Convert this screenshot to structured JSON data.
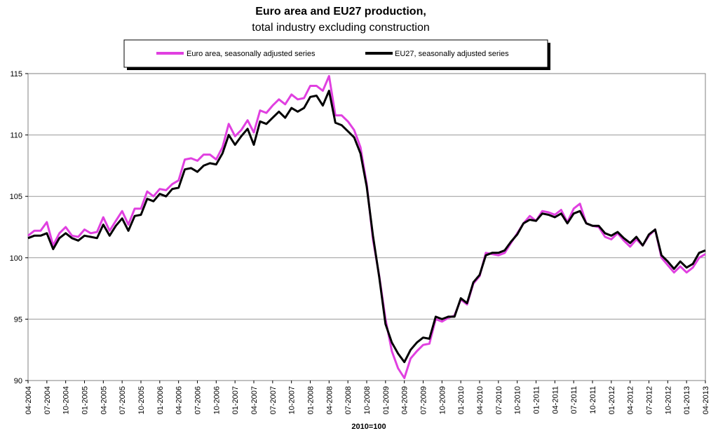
{
  "chart_data": {
    "type": "line",
    "title": "Euro area and EU27 production,",
    "subtitle": "total industry excluding construction",
    "xlabel": "2010=100",
    "ylabel": "",
    "ylim": [
      90,
      115
    ],
    "yticks": [
      90,
      95,
      100,
      105,
      110,
      115
    ],
    "grid": true,
    "legend_position": "top",
    "tick_labels": [
      "04-2004",
      "07-2004",
      "10-2004",
      "01-2005",
      "04-2005",
      "07-2005",
      "10-2005",
      "01-2006",
      "04-2006",
      "07-2006",
      "10-2006",
      "01-2007",
      "04-2007",
      "07-2007",
      "10-2007",
      "01-2008",
      "04-2008",
      "07-2008",
      "10-2008",
      "01-2009",
      "04-2009",
      "07-2009",
      "10-2009",
      "01-2010",
      "04-2010",
      "07-2010",
      "10-2010",
      "01-2011",
      "04-2011",
      "07-2011",
      "10-2011",
      "01-2012",
      "04-2012",
      "07-2012",
      "10-2012",
      "01-2013",
      "04-2013"
    ],
    "x_start": "04-2004",
    "x_end": "04-2013",
    "series": [
      {
        "name": "Euro area, seasonally adjusted series",
        "color": "#e040e0",
        "values": [
          101.8,
          102.2,
          102.2,
          102.9,
          101.0,
          102.0,
          102.5,
          101.8,
          101.7,
          102.3,
          102.0,
          102.1,
          103.3,
          102.2,
          103.0,
          103.8,
          102.7,
          104.0,
          104.0,
          105.4,
          105.0,
          105.6,
          105.5,
          106.0,
          106.3,
          108.0,
          108.1,
          107.9,
          108.4,
          108.4,
          108.0,
          109.0,
          110.9,
          109.9,
          110.4,
          111.2,
          110.2,
          112.0,
          111.8,
          112.4,
          112.9,
          112.5,
          113.3,
          112.9,
          113.0,
          114.0,
          114.0,
          113.6,
          114.8,
          111.6,
          111.6,
          111.1,
          110.4,
          109.0,
          106.0,
          101.5,
          98.5,
          95.0,
          92.4,
          91.0,
          90.2,
          91.8,
          92.4,
          92.9,
          93.0,
          95.0,
          94.8,
          95.1,
          95.3,
          96.6,
          96.2,
          97.9,
          98.5,
          100.4,
          100.3,
          100.2,
          100.4,
          101.2,
          102.0,
          102.8,
          103.4,
          103.0,
          103.8,
          103.7,
          103.5,
          103.9,
          102.9,
          104.0,
          104.4,
          102.8,
          102.6,
          102.5,
          101.7,
          101.5,
          102.0,
          101.4,
          100.9,
          101.5,
          101.0,
          101.8,
          102.3,
          100.0,
          99.4,
          98.8,
          99.3,
          98.8,
          99.2,
          100.0,
          100.3
        ]
      },
      {
        "name": "EU27, seasonally adjusted series",
        "color": "#000000",
        "values": [
          101.6,
          101.8,
          101.8,
          102.0,
          100.7,
          101.6,
          102.0,
          101.6,
          101.4,
          101.8,
          101.7,
          101.6,
          102.7,
          101.8,
          102.6,
          103.2,
          102.2,
          103.4,
          103.5,
          104.8,
          104.6,
          105.2,
          105.0,
          105.6,
          105.7,
          107.2,
          107.3,
          107.0,
          107.5,
          107.7,
          107.6,
          108.5,
          110.0,
          109.2,
          109.9,
          110.5,
          109.2,
          111.1,
          110.9,
          111.4,
          111.9,
          111.4,
          112.2,
          111.9,
          112.2,
          113.1,
          113.2,
          112.4,
          113.6,
          111.0,
          110.8,
          110.3,
          109.8,
          108.5,
          105.8,
          101.8,
          98.4,
          94.6,
          93.1,
          92.2,
          91.5,
          92.5,
          93.1,
          93.5,
          93.4,
          95.2,
          95.0,
          95.2,
          95.2,
          96.7,
          96.3,
          98.0,
          98.6,
          100.2,
          100.4,
          100.4,
          100.6,
          101.3,
          101.9,
          102.8,
          103.1,
          103.0,
          103.6,
          103.5,
          103.3,
          103.6,
          102.8,
          103.6,
          103.8,
          102.8,
          102.6,
          102.6,
          102.0,
          101.8,
          102.1,
          101.6,
          101.2,
          101.7,
          101.0,
          101.9,
          102.3,
          100.2,
          99.7,
          99.1,
          99.7,
          99.2,
          99.5,
          100.4,
          100.6
        ]
      }
    ]
  }
}
